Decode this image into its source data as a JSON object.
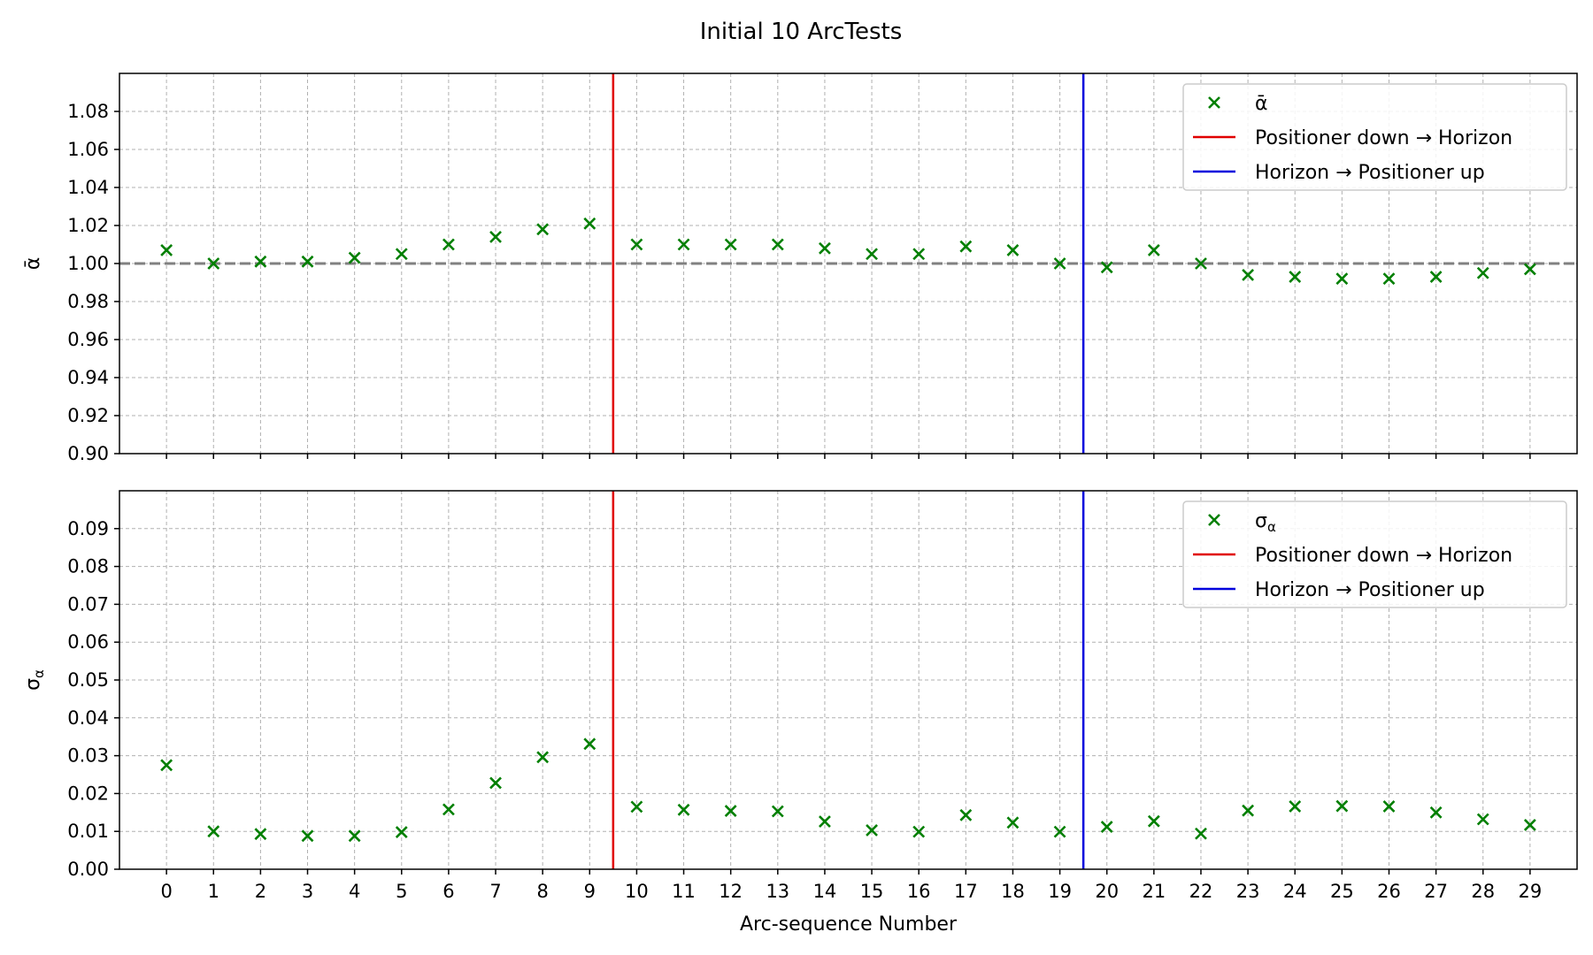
{
  "title": "Initial 10 ArcTests",
  "colors": {
    "marker": "#007f00",
    "grid": "#b0b0b0",
    "reference": "#808080",
    "transition_1": "#e00000",
    "transition_2": "#0000dd"
  },
  "chart_data": [
    {
      "type": "scatter",
      "marker": "x",
      "ylabel": "ᾱ",
      "xlabel": "",
      "ylim": [
        0.9,
        1.1
      ],
      "yticks": [
        "0.90",
        "0.92",
        "0.94",
        "0.96",
        "0.98",
        "1.00",
        "1.02",
        "1.04",
        "1.06",
        "1.08"
      ],
      "xlim": [
        -1,
        30
      ],
      "reference_line": 1.0,
      "grid": true,
      "legend_position": "top-right",
      "legend": [
        {
          "kind": "marker",
          "label": "ᾱ"
        },
        {
          "kind": "line",
          "color_key": "transition_1",
          "label": "Positioner down → Horizon"
        },
        {
          "kind": "line",
          "color_key": "transition_2",
          "label": "Horizon → Positioner up"
        }
      ],
      "vlines": [
        9.5,
        19.5
      ],
      "x": [
        0,
        1,
        2,
        3,
        4,
        5,
        6,
        7,
        8,
        9,
        10,
        11,
        12,
        13,
        14,
        15,
        16,
        17,
        18,
        19,
        20,
        21,
        22,
        23,
        24,
        25,
        26,
        27,
        28,
        29
      ],
      "y": [
        1.007,
        1.0,
        1.001,
        1.001,
        1.003,
        1.005,
        1.01,
        1.014,
        1.018,
        1.021,
        1.01,
        1.01,
        1.01,
        1.01,
        1.008,
        1.005,
        1.005,
        1.009,
        1.007,
        1.0,
        0.998,
        1.007,
        1.0,
        0.994,
        0.993,
        0.992,
        0.992,
        0.993,
        0.995,
        0.997
      ]
    },
    {
      "type": "scatter",
      "marker": "x",
      "ylabel": "σα",
      "xlabel": "Arc-sequence Number",
      "ylim": [
        0.0,
        0.1
      ],
      "yticks": [
        "0.00",
        "0.01",
        "0.02",
        "0.03",
        "0.04",
        "0.05",
        "0.06",
        "0.07",
        "0.08",
        "0.09"
      ],
      "xlim": [
        -1,
        30
      ],
      "grid": true,
      "legend_position": "top-right",
      "legend": [
        {
          "kind": "marker",
          "label": "σα"
        },
        {
          "kind": "line",
          "color_key": "transition_1",
          "label": "Positioner down → Horizon"
        },
        {
          "kind": "line",
          "color_key": "transition_2",
          "label": "Horizon → Positioner up"
        }
      ],
      "vlines": [
        9.5,
        19.5
      ],
      "x": [
        0,
        1,
        2,
        3,
        4,
        5,
        6,
        7,
        8,
        9,
        10,
        11,
        12,
        13,
        14,
        15,
        16,
        17,
        18,
        19,
        20,
        21,
        22,
        23,
        24,
        25,
        26,
        27,
        28,
        29
      ],
      "xticks": [
        "0",
        "1",
        "2",
        "3",
        "4",
        "5",
        "6",
        "7",
        "8",
        "9",
        "10",
        "11",
        "12",
        "13",
        "14",
        "15",
        "16",
        "17",
        "18",
        "19",
        "20",
        "21",
        "22",
        "23",
        "24",
        "25",
        "26",
        "27",
        "28",
        "29"
      ],
      "y": [
        0.0275,
        0.01,
        0.0093,
        0.0088,
        0.0088,
        0.0098,
        0.0158,
        0.0228,
        0.0296,
        0.0331,
        0.0165,
        0.0157,
        0.0154,
        0.0153,
        0.0126,
        0.0103,
        0.0099,
        0.0143,
        0.0123,
        0.0099,
        0.0112,
        0.0127,
        0.0094,
        0.0155,
        0.0166,
        0.0167,
        0.0166,
        0.015,
        0.0132,
        0.0117
      ]
    }
  ]
}
